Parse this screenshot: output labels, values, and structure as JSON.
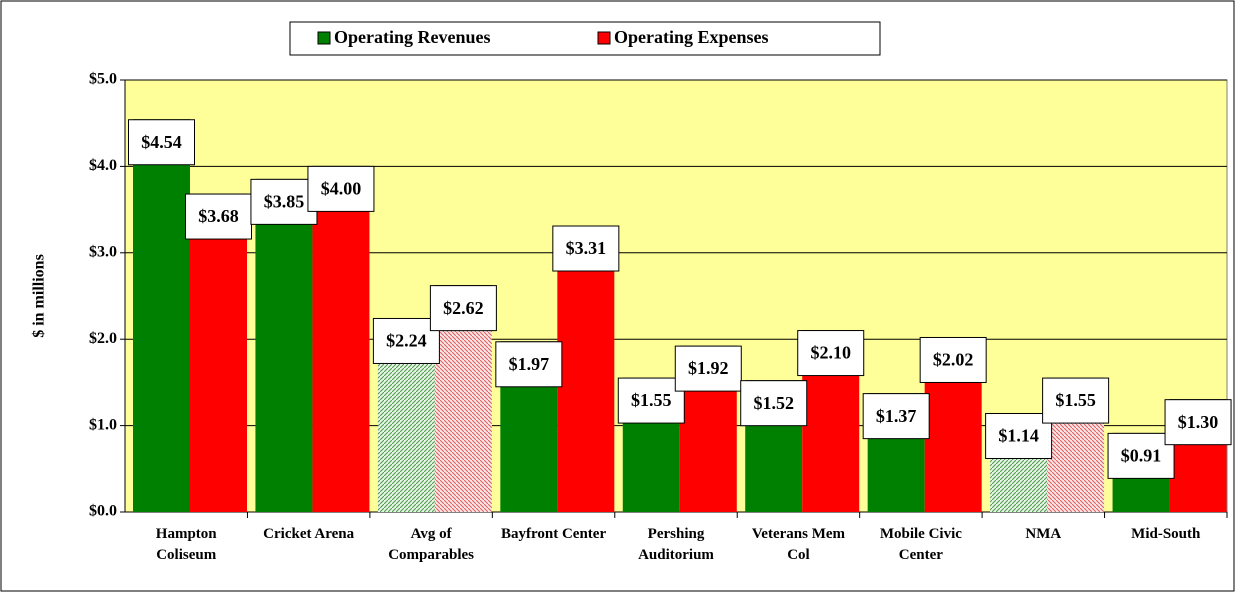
{
  "chart_data": {
    "type": "bar",
    "y_axis_label": "$ in millions",
    "categories": [
      "Hampton Coliseum",
      "Cricket Arena",
      "Avg of Comparables",
      "Bayfront Center",
      "Pershing Auditorium",
      "Veterans Mem Col",
      "Mobile Civic Center",
      "NMA",
      "Mid-South"
    ],
    "series": [
      {
        "name": "Operating Revenues",
        "color": "#008000",
        "values": [
          4.54,
          3.85,
          2.24,
          1.97,
          1.55,
          1.52,
          1.37,
          1.14,
          0.91
        ],
        "value_labels": [
          "$4.54",
          "$3.85",
          "$2.24",
          "$1.97",
          "$1.55",
          "$1.52",
          "$1.37",
          "$1.14",
          "$0.91"
        ]
      },
      {
        "name": "Operating Expenses",
        "color": "#ff0000",
        "values": [
          3.68,
          4.0,
          2.62,
          3.31,
          1.92,
          2.1,
          2.02,
          1.55,
          1.3
        ],
        "value_labels": [
          "$3.68",
          "$4.00",
          "$2.62",
          "$3.31",
          "$1.92",
          "$2.10",
          "$2.02",
          "$1.55",
          "$1.30"
        ]
      }
    ],
    "hatched_categories": [
      2,
      7
    ],
    "ylim": [
      0,
      5
    ],
    "yticks": [
      {
        "value": 0,
        "label": "$0.0"
      },
      {
        "value": 1,
        "label": "$1.0"
      },
      {
        "value": 2,
        "label": "$2.0"
      },
      {
        "value": 3,
        "label": "$3.0"
      },
      {
        "value": 4,
        "label": "$4.0"
      },
      {
        "value": 5,
        "label": "$5.0"
      }
    ],
    "grid": true,
    "plot_background": "#ffff99",
    "legend": "top"
  }
}
